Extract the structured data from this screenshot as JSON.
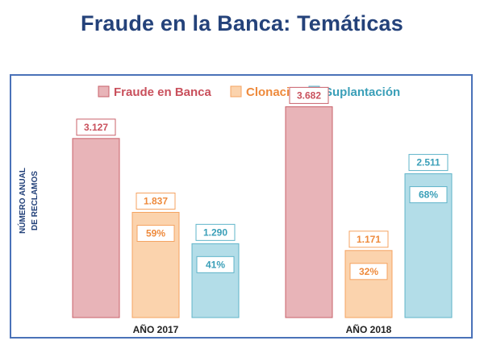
{
  "title": "Fraude en la Banca: Temáticas",
  "chart_data": {
    "type": "bar",
    "categories": [
      "AÑO 2017",
      "AÑO 2018"
    ],
    "ylabel": [
      "NÚMERO ANUAL",
      "DE RECLAMOS"
    ],
    "legend_position": "top",
    "grid": false,
    "ylim": [
      0,
      3800
    ],
    "series": [
      {
        "name": "Fraude en Banca",
        "values": [
          3127,
          3682
        ],
        "labels": [
          "3.127",
          "3.682"
        ],
        "percent": [
          "",
          ""
        ],
        "color": "#e8b4b8",
        "border": "#c9606a",
        "text_color": "#c9505c"
      },
      {
        "name": "Clonación",
        "values": [
          1837,
          1171
        ],
        "labels": [
          "1.837",
          "1.171"
        ],
        "percent": [
          "59%",
          "32%"
        ],
        "color": "#fbd3ad",
        "border": "#f5a361",
        "text_color": "#ee8a3c"
      },
      {
        "name": "Suplantación",
        "values": [
          1290,
          2511
        ],
        "labels": [
          "1.290",
          "2.511"
        ],
        "percent": [
          "41%",
          "68%"
        ],
        "color": "#b3dde8",
        "border": "#5fb4c9",
        "text_color": "#3a9fb8"
      }
    ]
  }
}
